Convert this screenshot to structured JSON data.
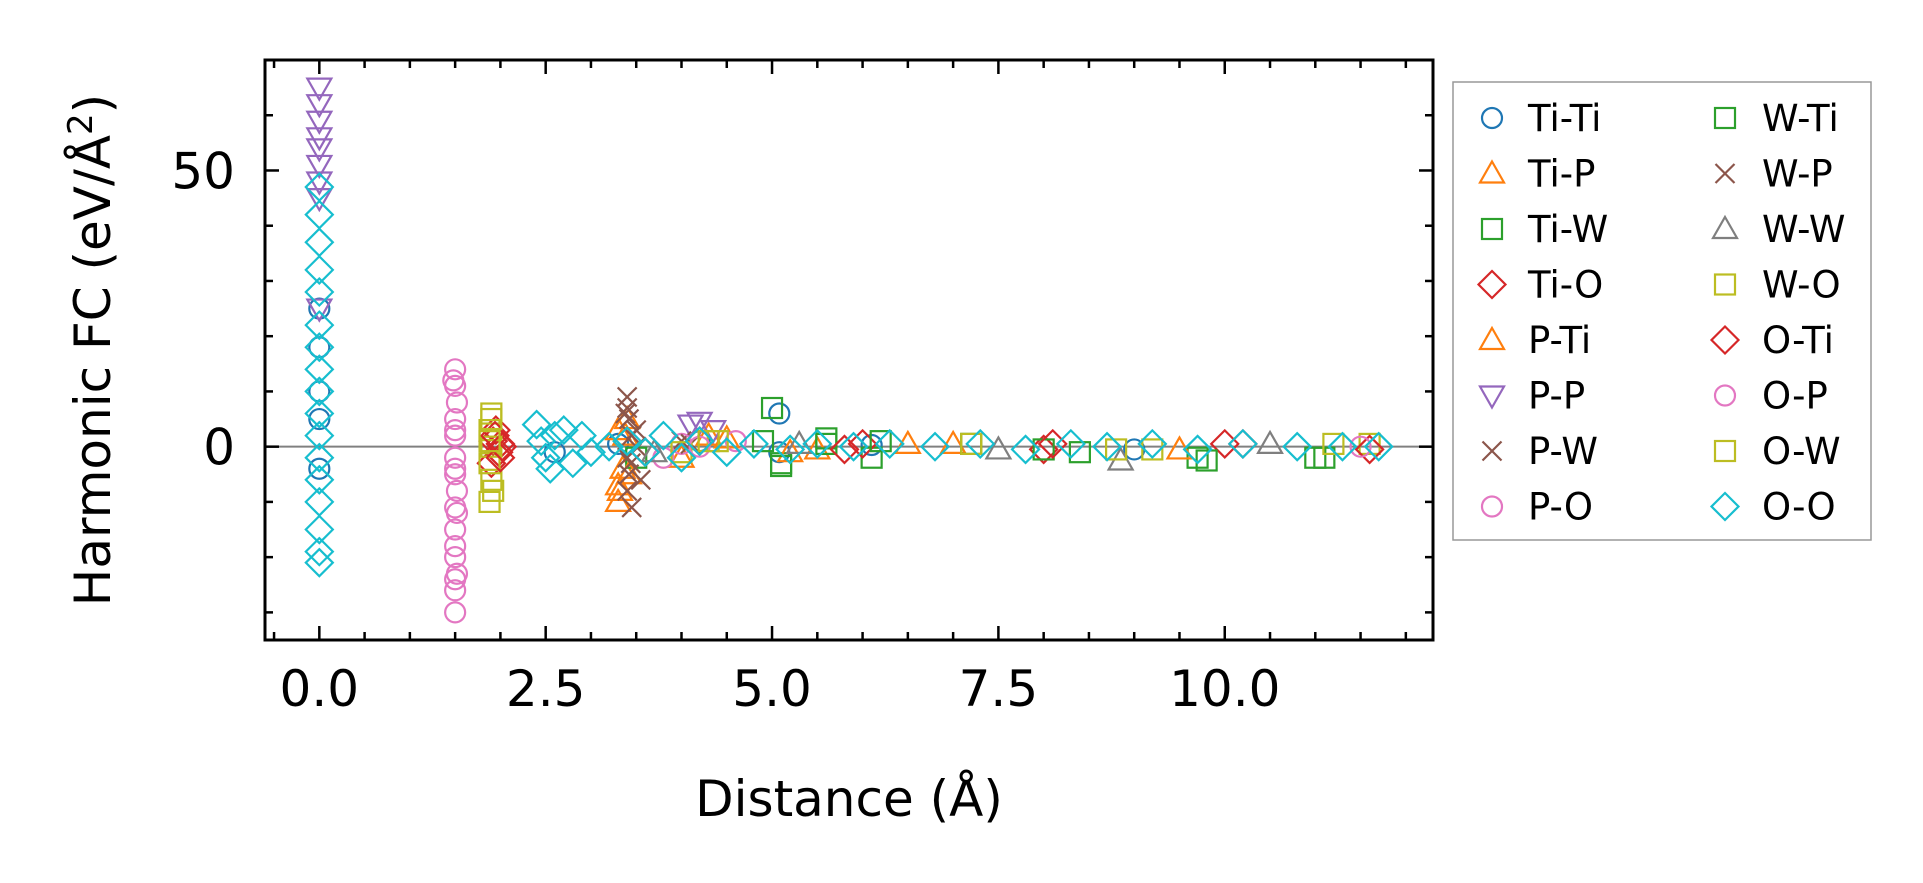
{
  "chart_data": {
    "type": "scatter",
    "title": "",
    "xlabel": "Distance (Å)",
    "ylabel_main": "Harmonic FC (eV/Å",
    "ylabel_sup": "2",
    "ylabel_end": ")",
    "xlim": [
      -0.6,
      12.3
    ],
    "ylim": [
      -35,
      70
    ],
    "xticks": [
      0.0,
      2.5,
      5.0,
      7.5,
      10.0
    ],
    "xtick_labels": [
      "0.0",
      "2.5",
      "5.0",
      "7.5",
      "10.0"
    ],
    "yticks": [
      0,
      50
    ],
    "ytick_labels": [
      "0",
      "50"
    ],
    "x_minor_step": 0.5,
    "y_minor_step": 10,
    "zero_line": true,
    "legend_position": "outside-right",
    "series": [
      {
        "name": "Ti-Ti",
        "color": "#1f77b4",
        "marker": "circle",
        "points": [
          [
            0.0,
            25
          ],
          [
            0.0,
            18
          ],
          [
            0.0,
            10
          ],
          [
            0.0,
            5
          ],
          [
            0.0,
            -4
          ],
          [
            5.08,
            6
          ],
          [
            5.08,
            -1
          ],
          [
            2.6,
            -1
          ],
          [
            3.3,
            0.5
          ],
          [
            4.2,
            1
          ],
          [
            6.1,
            0.3
          ],
          [
            9.0,
            -0.5
          ]
        ]
      },
      {
        "name": "Ti-P",
        "color": "#ff7f0e",
        "marker": "triangle-up",
        "points": [
          [
            3.3,
            -10
          ],
          [
            3.3,
            -7
          ],
          [
            3.35,
            -4
          ],
          [
            3.3,
            3
          ],
          [
            3.4,
            5
          ],
          [
            4.0,
            -2
          ],
          [
            4.5,
            1.5
          ],
          [
            5.5,
            -0.5
          ],
          [
            7.0,
            0.5
          ]
        ]
      },
      {
        "name": "Ti-W",
        "color": "#2ca02c",
        "marker": "square",
        "points": [
          [
            3.5,
            -2
          ],
          [
            4.9,
            1
          ],
          [
            5.1,
            -3
          ],
          [
            5.6,
            1.5
          ],
          [
            6.1,
            -2
          ],
          [
            7.2,
            0.5
          ],
          [
            8.4,
            -1
          ],
          [
            9.7,
            -2
          ],
          [
            11.1,
            -2
          ]
        ]
      },
      {
        "name": "Ti-O",
        "color": "#d62728",
        "marker": "diamond",
        "points": [
          [
            1.9,
            -3
          ],
          [
            1.92,
            1
          ],
          [
            1.95,
            3
          ],
          [
            1.98,
            -1
          ],
          [
            2.0,
            0.5
          ],
          [
            3.6,
            -1
          ],
          [
            4.2,
            1
          ],
          [
            6.0,
            0.5
          ],
          [
            8.0,
            -0.5
          ],
          [
            10.0,
            0.5
          ]
        ]
      },
      {
        "name": "P-Ti",
        "color": "#ff7f0e",
        "marker": "triangle-up",
        "points": [
          [
            3.32,
            -8
          ],
          [
            3.38,
            2
          ],
          [
            3.42,
            -5
          ],
          [
            4.3,
            2
          ],
          [
            5.2,
            -1
          ],
          [
            6.5,
            0.5
          ],
          [
            9.5,
            -0.5
          ]
        ]
      },
      {
        "name": "P-P",
        "color": "#9467bd",
        "marker": "triangle-down",
        "points": [
          [
            0.0,
            65
          ],
          [
            0.0,
            62
          ],
          [
            0.0,
            59
          ],
          [
            0.0,
            56
          ],
          [
            0.0,
            54
          ],
          [
            0.0,
            51
          ],
          [
            0.0,
            48
          ],
          [
            0.0,
            45
          ],
          [
            0.0,
            25
          ],
          [
            4.1,
            4
          ],
          [
            4.2,
            4.5
          ],
          [
            4.35,
            3
          ]
        ]
      },
      {
        "name": "P-W",
        "color": "#8c564b",
        "marker": "x",
        "points": [
          [
            3.4,
            9
          ],
          [
            3.4,
            7
          ],
          [
            3.42,
            5
          ],
          [
            3.45,
            2
          ],
          [
            3.4,
            -2
          ],
          [
            3.42,
            -5
          ],
          [
            3.4,
            -8
          ],
          [
            3.45,
            -11
          ],
          [
            3.5,
            0
          ],
          [
            4.0,
            1
          ]
        ]
      },
      {
        "name": "P-O",
        "color": "#e377c2",
        "marker": "circle",
        "points": [
          [
            1.5,
            14
          ],
          [
            1.5,
            11
          ],
          [
            1.52,
            8
          ],
          [
            1.5,
            5
          ],
          [
            1.5,
            2
          ],
          [
            1.5,
            -2
          ],
          [
            1.5,
            -5
          ],
          [
            1.52,
            -8
          ],
          [
            1.5,
            -11
          ],
          [
            1.5,
            -15
          ],
          [
            1.5,
            -20
          ],
          [
            1.52,
            -23
          ],
          [
            1.5,
            -26
          ],
          [
            1.5,
            -30
          ],
          [
            3.8,
            -2
          ],
          [
            4.0,
            0.5
          ],
          [
            4.6,
            1
          ]
        ]
      },
      {
        "name": "W-Ti",
        "color": "#2ca02c",
        "marker": "square",
        "points": [
          [
            5.0,
            7
          ],
          [
            5.1,
            -3.5
          ],
          [
            5.6,
            0.5
          ],
          [
            6.2,
            1
          ],
          [
            8.0,
            -0.5
          ],
          [
            9.8,
            -2.5
          ],
          [
            11.0,
            -2
          ]
        ]
      },
      {
        "name": "W-P",
        "color": "#8c564b",
        "marker": "x",
        "points": [
          [
            3.38,
            6
          ],
          [
            3.44,
            -3
          ],
          [
            3.5,
            3
          ],
          [
            3.55,
            -6
          ],
          [
            4.1,
            0.5
          ]
        ]
      },
      {
        "name": "W-W",
        "color": "#7f7f7f",
        "marker": "triangle-up",
        "points": [
          [
            3.7,
            -1
          ],
          [
            5.3,
            0.5
          ],
          [
            7.5,
            -0.5
          ],
          [
            8.85,
            -2.5
          ],
          [
            10.5,
            0.5
          ]
        ]
      },
      {
        "name": "W-O",
        "color": "#bcbd22",
        "marker": "square",
        "points": [
          [
            1.88,
            -10
          ],
          [
            1.9,
            -6
          ],
          [
            1.88,
            -3
          ],
          [
            1.9,
            0
          ],
          [
            1.88,
            3
          ],
          [
            1.9,
            6
          ],
          [
            4.0,
            -1
          ],
          [
            4.4,
            1
          ],
          [
            7.2,
            0.5
          ],
          [
            9.2,
            -0.5
          ],
          [
            11.6,
            0.5
          ]
        ]
      },
      {
        "name": "O-Ti",
        "color": "#d62728",
        "marker": "diamond",
        "points": [
          [
            1.94,
            2
          ],
          [
            2.0,
            -2
          ],
          [
            2.02,
            0
          ],
          [
            5.8,
            -0.5
          ],
          [
            8.1,
            0.5
          ],
          [
            10.2,
            0.5
          ],
          [
            11.6,
            -0.5
          ]
        ]
      },
      {
        "name": "O-P",
        "color": "#e377c2",
        "marker": "circle",
        "points": [
          [
            1.48,
            12
          ],
          [
            1.5,
            3
          ],
          [
            1.5,
            -4
          ],
          [
            1.52,
            -12
          ],
          [
            1.5,
            -18
          ],
          [
            1.5,
            -24
          ],
          [
            4.2,
            0
          ],
          [
            11.5,
            0
          ]
        ]
      },
      {
        "name": "O-W",
        "color": "#bcbd22",
        "marker": "square",
        "points": [
          [
            1.9,
            5
          ],
          [
            1.92,
            -8
          ],
          [
            1.88,
            1
          ],
          [
            4.3,
            1
          ],
          [
            8.8,
            -0.5
          ],
          [
            11.2,
            0.5
          ]
        ]
      },
      {
        "name": "O-O",
        "color": "#17becf",
        "marker": "diamond",
        "points": [
          [
            0.0,
            47
          ],
          [
            0.0,
            42
          ],
          [
            0.0,
            37
          ],
          [
            0.0,
            32
          ],
          [
            0.0,
            28
          ],
          [
            0.0,
            22
          ],
          [
            0.0,
            18
          ],
          [
            0.0,
            14
          ],
          [
            0.0,
            10
          ],
          [
            0.0,
            6
          ],
          [
            0.0,
            2
          ],
          [
            0.0,
            -2
          ],
          [
            0.0,
            -6
          ],
          [
            0.0,
            -10
          ],
          [
            0.0,
            -15
          ],
          [
            0.0,
            -19
          ],
          [
            0.0,
            -21
          ],
          [
            2.4,
            4
          ],
          [
            2.45,
            1
          ],
          [
            2.5,
            -2
          ],
          [
            2.55,
            -4
          ],
          [
            2.6,
            2
          ],
          [
            2.7,
            3
          ],
          [
            2.8,
            -3
          ],
          [
            2.9,
            2
          ],
          [
            3.0,
            -1
          ],
          [
            3.2,
            0
          ],
          [
            3.4,
            1
          ],
          [
            3.6,
            -1
          ],
          [
            3.8,
            2
          ],
          [
            4.0,
            -2
          ],
          [
            4.2,
            1
          ],
          [
            4.5,
            -1
          ],
          [
            4.8,
            0.5
          ],
          [
            5.2,
            -0.5
          ],
          [
            5.5,
            0.5
          ],
          [
            5.9,
            0
          ],
          [
            6.3,
            0.5
          ],
          [
            6.8,
            0
          ],
          [
            7.3,
            0.5
          ],
          [
            7.8,
            -0.5
          ],
          [
            8.3,
            0.5
          ],
          [
            8.7,
            0
          ],
          [
            9.2,
            0.5
          ],
          [
            9.7,
            -0.5
          ],
          [
            10.2,
            0.5
          ],
          [
            10.8,
            0
          ],
          [
            11.3,
            0
          ],
          [
            11.7,
            0
          ]
        ]
      }
    ]
  }
}
